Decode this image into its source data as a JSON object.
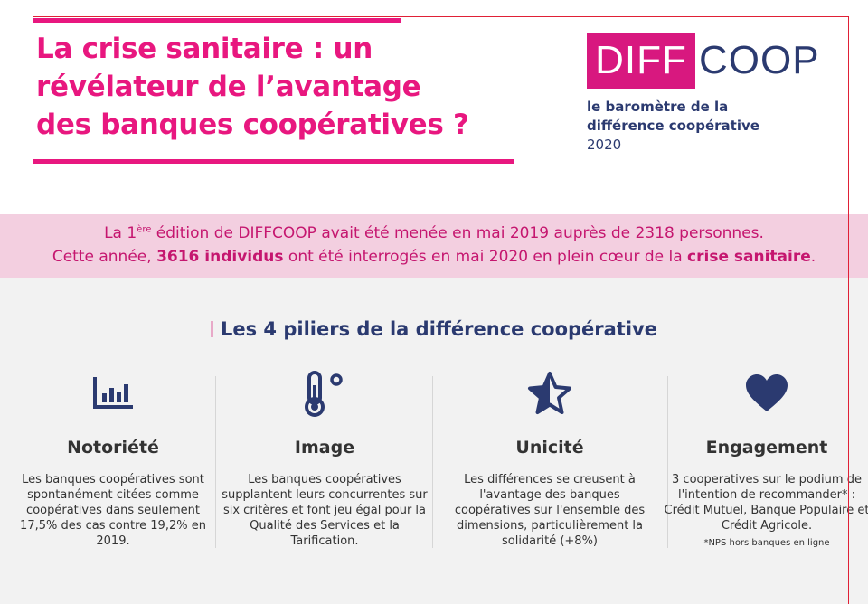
{
  "header": {
    "title_line1": "La crise sanitaire : un",
    "title_line2": "révélateur de l’avantage",
    "title_line3": "des banques coopératives ?",
    "logo_left": "DIFF",
    "logo_right": "COOP",
    "baro_line1": "le baromètre de la",
    "baro_line2": "différence coopérative",
    "baro_year": "2020"
  },
  "band": {
    "l1_a": "La 1",
    "l1_sup": "ère",
    "l1_b": " édition de DIFFCOOP avait été menée en mai 2019 auprès de 2318 personnes.",
    "l2_a": "Cette année, ",
    "l2_bold1": "3616 individus",
    "l2_b": " ont été interrogés en mai 2020 en plein cœur de la ",
    "l2_bold2": "crise sanitaire",
    "l2_end": "."
  },
  "section": {
    "title": "Les 4 piliers de la différence coopérative"
  },
  "pillars": [
    {
      "icon": "bar-chart-icon",
      "name": "Notoriété",
      "desc": "Les banques coopératives sont spontanément citées comme coopératives dans seulement 17,5% des cas contre 19,2% en 2019."
    },
    {
      "icon": "thermometer-icon",
      "name": "Image",
      "desc": "Les  banques coopératives supplantent leurs concurrentes sur six critères et font jeu égal pour la Qualité des Services et la Tarification."
    },
    {
      "icon": "star-icon",
      "name": "Unicité",
      "desc": "Les différences se creusent à l'avantage des banques coopératives sur l'ensemble des dimensions, particulièrement la solidarité (+8%)"
    },
    {
      "icon": "heart-icon",
      "name": "Engagement",
      "desc": "3 cooperatives sur le podium de l'intention de recommander* : Crédit Mutuel, Banque Populaire et Crédit Agricole.",
      "note": "*NPS hors banques en ligne"
    }
  ],
  "colors": {
    "accent": "#e8177f",
    "navy": "#2b3a70",
    "band": "#f3cfe0",
    "frame": "#e02036"
  }
}
